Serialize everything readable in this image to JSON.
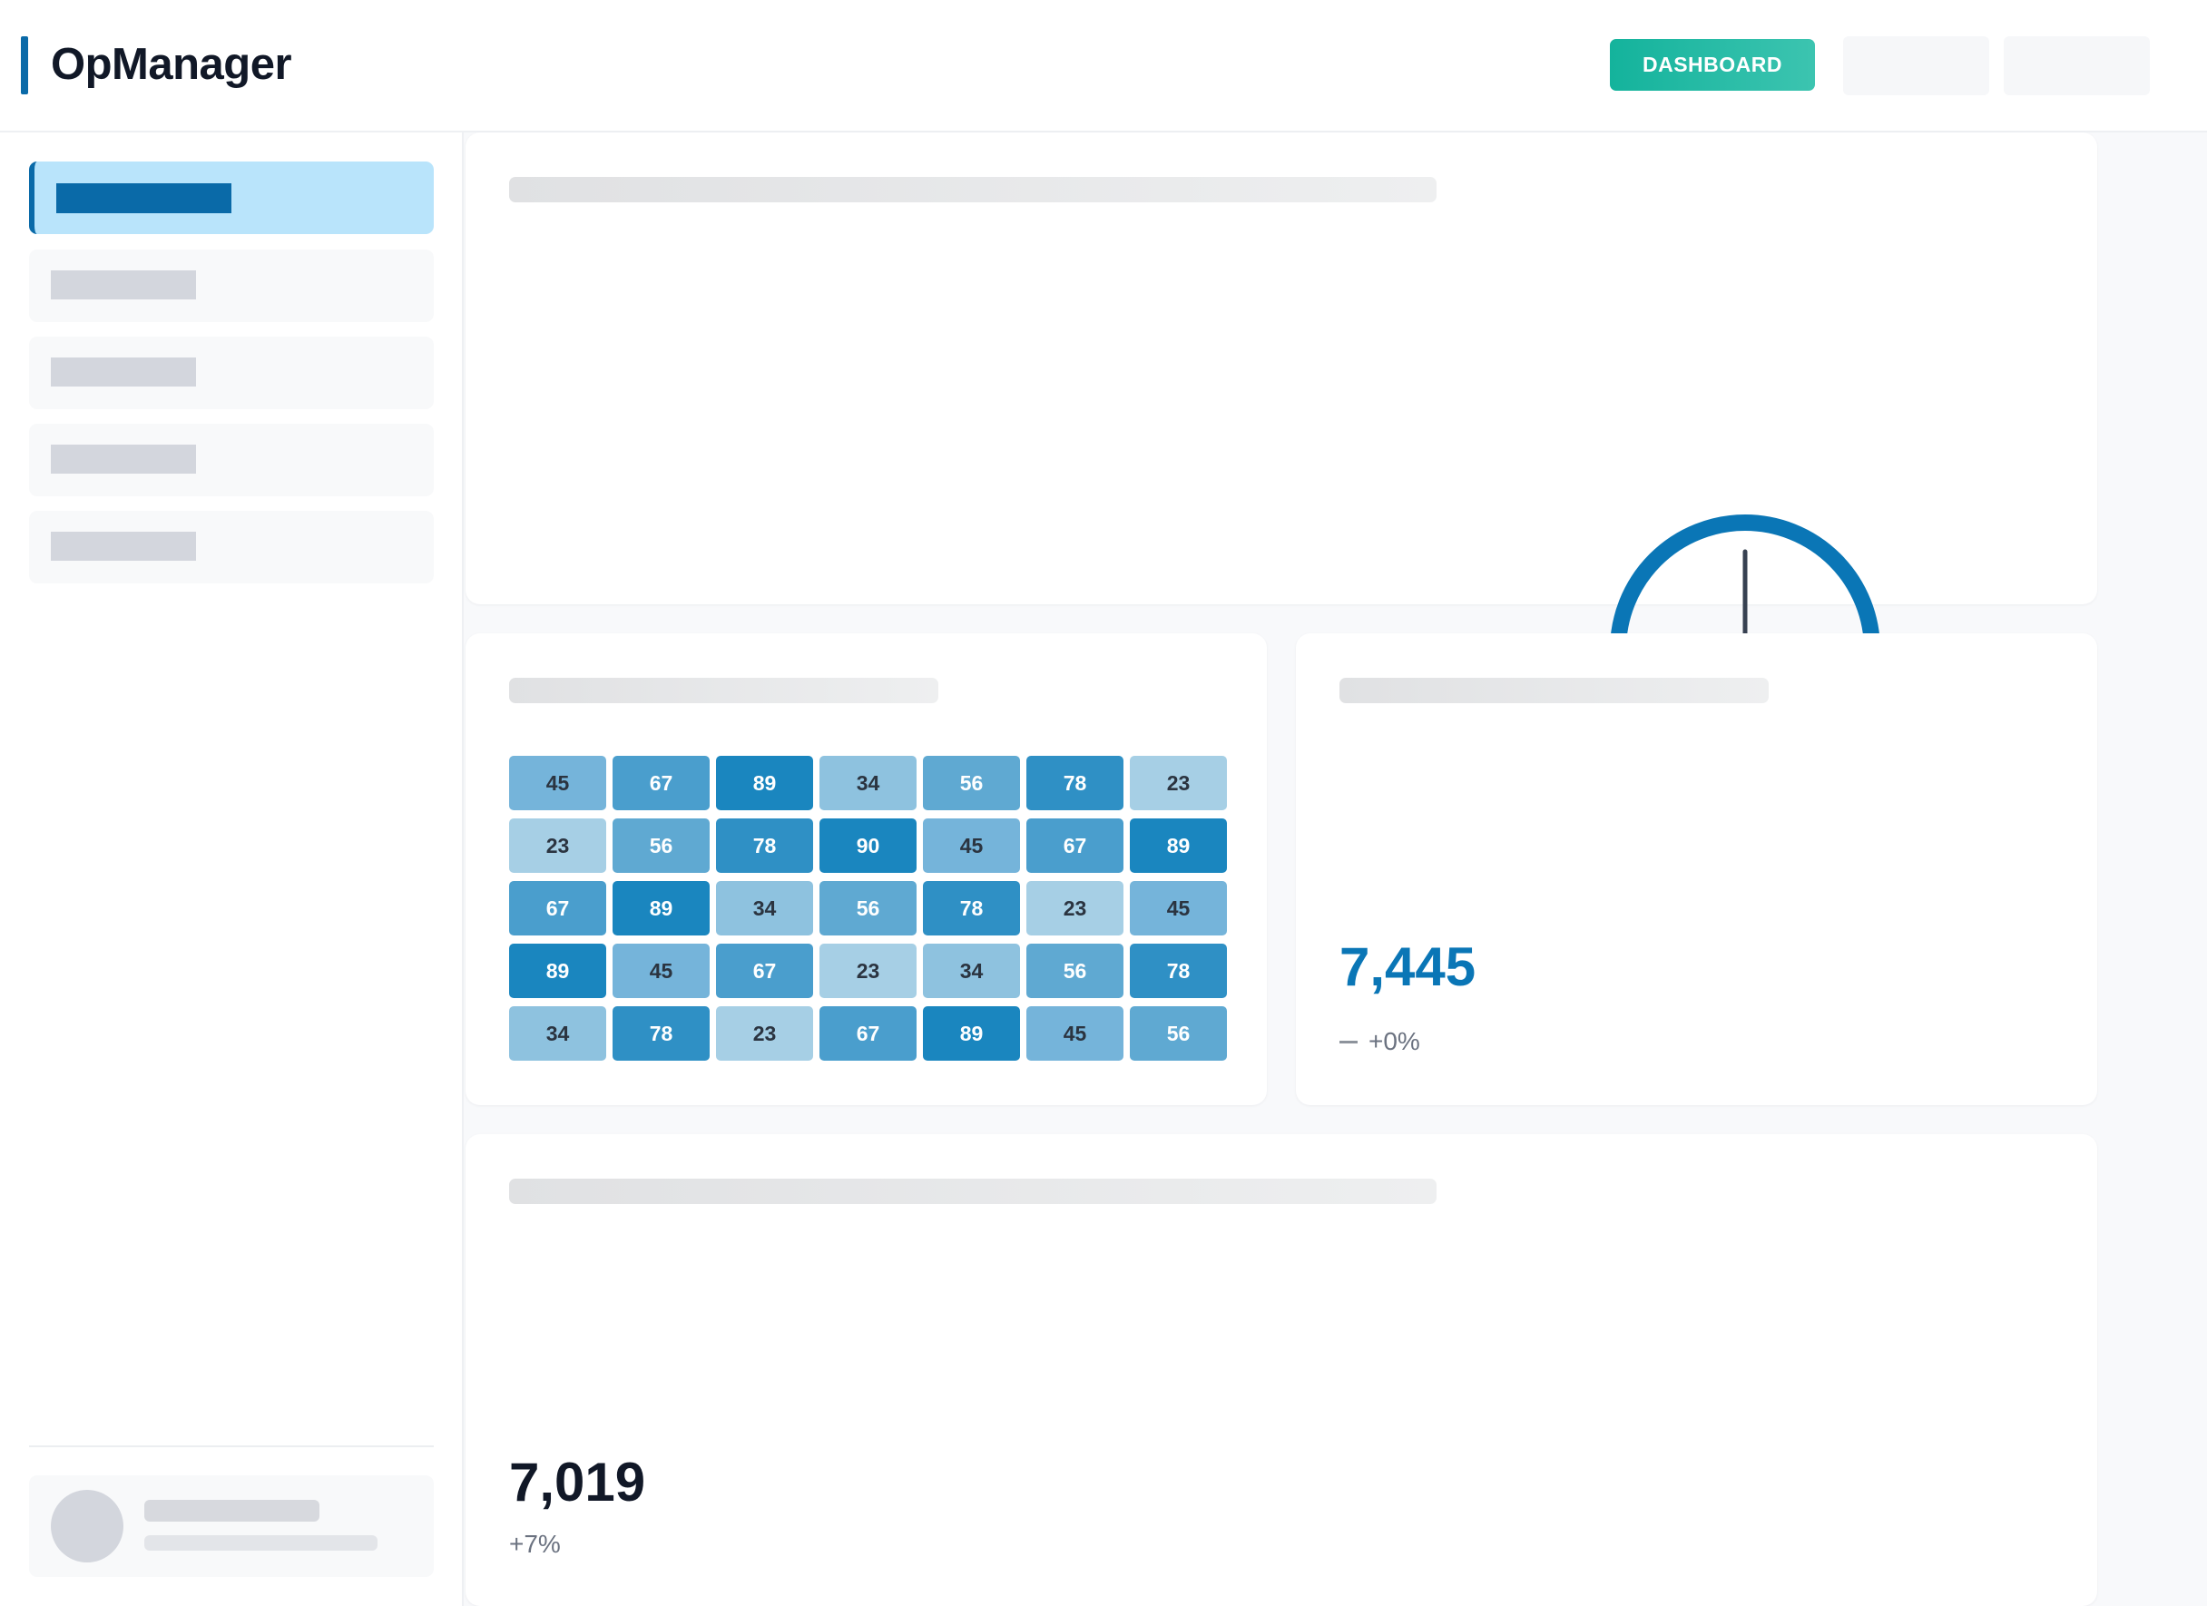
{
  "header": {
    "app_name": "OpManager",
    "dashboard_button": "DASHBOARD"
  },
  "colors": {
    "brand": "#0a6aa8",
    "accent_teal": "#14b39c",
    "active_nav_bg": "#b9e4fb",
    "kpi_value": "#0a76b6"
  },
  "gauge": {
    "value_percent": 50,
    "color": "#0a76b6"
  },
  "heatmap": {
    "rows": [
      [
        45,
        67,
        89,
        34,
        56,
        78,
        23
      ],
      [
        23,
        56,
        78,
        90,
        45,
        67,
        89
      ],
      [
        67,
        89,
        34,
        56,
        78,
        23,
        45
      ],
      [
        89,
        45,
        67,
        23,
        34,
        56,
        78
      ],
      [
        34,
        78,
        23,
        67,
        89,
        45,
        56
      ]
    ]
  },
  "kpi": {
    "value": "7,445",
    "delta": "+0%",
    "trend_icon": "dash-icon"
  },
  "summary": {
    "value": "7,019",
    "delta": "+7%"
  }
}
